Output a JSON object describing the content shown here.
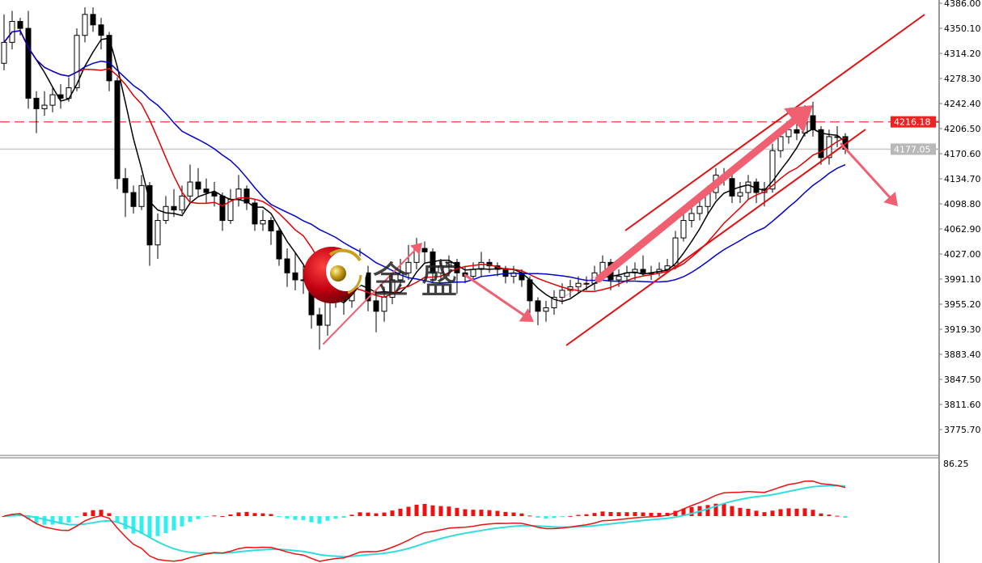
{
  "chart_data": {
    "type": "candlestick",
    "price_axis": {
      "ticks": [
        "4386.00",
        "4350.10",
        "4314.20",
        "4278.30",
        "4242.40",
        "4206.50",
        "4170.60",
        "4134.70",
        "4098.80",
        "4062.90",
        "4027.00",
        "3991.10",
        "3955.20",
        "3919.30",
        "3883.40",
        "3847.50",
        "3811.60",
        "3775.70"
      ],
      "range": [
        3740,
        4390
      ]
    },
    "levels": [
      {
        "label": "4216.18",
        "value": 4216.18,
        "style": "dashed",
        "color": "#f05050"
      },
      {
        "label": "4177.05",
        "value": 4177.05,
        "style": "solid",
        "color": "#c8c8c8"
      }
    ],
    "moving_averages": [
      {
        "period": 5,
        "color": "#000000"
      },
      {
        "period": 10,
        "color": "#e00000"
      },
      {
        "period": 20,
        "color": "#0000cc"
      }
    ],
    "candles": {
      "open": [
        4300,
        4330,
        4360,
        4350,
        4250,
        4235,
        4240,
        4255,
        4250,
        4265,
        4340,
        4370,
        4355,
        4340,
        4275,
        4135,
        4115,
        4095,
        4125,
        4040,
        4075,
        4095,
        4090,
        4110,
        4130,
        4120,
        4115,
        4110,
        4075,
        4105,
        4120,
        4100,
        4070,
        4075,
        4060,
        4020,
        4000,
        3990,
        3990,
        3940,
        3925,
        3985,
        3975,
        3960,
        3995,
        4000,
        3960,
        3945,
        3965,
        3990,
        4000,
        4015,
        4035,
        4030,
        4000,
        4010,
        4015,
        4000,
        3995,
        4005,
        4015,
        4010,
        4005,
        3995,
        4000,
        3990,
        3960,
        3945,
        3950,
        3965,
        3975,
        3980,
        3985,
        3985,
        4000,
        4015,
        3990,
        3995,
        4000,
        4005,
        4000,
        4000,
        4005,
        4010,
        4050,
        4075,
        4085,
        4095,
        4115,
        4140,
        4135,
        4110,
        4115,
        4130,
        4115,
        4120,
        4175,
        4195,
        4205,
        4200,
        4225,
        4205,
        4165,
        4195,
        4195
      ],
      "high": [
        4370,
        4375,
        4365,
        4375,
        4260,
        4260,
        4265,
        4270,
        4280,
        4350,
        4380,
        4380,
        4365,
        4345,
        4280,
        4150,
        4125,
        4140,
        4130,
        4085,
        4110,
        4120,
        4125,
        4155,
        4150,
        4135,
        4130,
        4115,
        4120,
        4140,
        4125,
        4105,
        4090,
        4080,
        4065,
        4035,
        4030,
        4010,
        3995,
        3950,
        3995,
        3995,
        3990,
        4030,
        4035,
        4010,
        3975,
        3980,
        4000,
        4020,
        4040,
        4050,
        4045,
        4035,
        4020,
        4025,
        4020,
        4010,
        4015,
        4030,
        4020,
        4015,
        4010,
        4010,
        4005,
        3995,
        3965,
        3960,
        3975,
        3985,
        3990,
        3995,
        3995,
        4010,
        4025,
        4020,
        4005,
        4010,
        4015,
        4025,
        4010,
        4015,
        4020,
        4060,
        4085,
        4095,
        4105,
        4125,
        4150,
        4150,
        4140,
        4130,
        4140,
        4135,
        4130,
        4185,
        4205,
        4215,
        4215,
        4240,
        4245,
        4210,
        4205,
        4210,
        4200
      ],
      "low": [
        4290,
        4320,
        4340,
        4235,
        4200,
        4225,
        4230,
        4235,
        4245,
        4260,
        4330,
        4345,
        4320,
        4260,
        4120,
        4080,
        4085,
        4090,
        4010,
        4020,
        4070,
        4080,
        4085,
        4100,
        4110,
        4100,
        4095,
        4060,
        4070,
        4095,
        4090,
        4060,
        4060,
        4040,
        4010,
        3980,
        3975,
        3970,
        3920,
        3890,
        3910,
        3950,
        3940,
        3950,
        3980,
        3945,
        3915,
        3930,
        3955,
        3980,
        3990,
        4005,
        4015,
        3985,
        3990,
        3995,
        3970,
        3985,
        3990,
        3995,
        4000,
        3995,
        3985,
        3985,
        3980,
        3935,
        3925,
        3930,
        3940,
        3955,
        3965,
        3970,
        3975,
        3975,
        3990,
        3975,
        3980,
        3985,
        3990,
        3995,
        3990,
        3995,
        4000,
        4005,
        4045,
        4065,
        4075,
        4085,
        4105,
        4125,
        4100,
        4100,
        4105,
        4100,
        4095,
        4115,
        4165,
        4185,
        4190,
        4195,
        4195,
        4155,
        4155,
        4180,
        4170
      ],
      "close": [
        4330,
        4360,
        4350,
        4250,
        4235,
        4240,
        4255,
        4250,
        4265,
        4340,
        4370,
        4355,
        4340,
        4275,
        4135,
        4115,
        4095,
        4125,
        4040,
        4075,
        4095,
        4090,
        4110,
        4130,
        4120,
        4115,
        4110,
        4075,
        4105,
        4120,
        4100,
        4070,
        4075,
        4060,
        4020,
        4000,
        3990,
        3990,
        3940,
        3925,
        3985,
        3975,
        3960,
        3995,
        4000,
        3960,
        3945,
        3965,
        3990,
        4000,
        4015,
        4035,
        4030,
        4000,
        4010,
        4015,
        4000,
        3995,
        4005,
        4015,
        4010,
        4005,
        3995,
        4000,
        3990,
        3960,
        3945,
        3950,
        3965,
        3975,
        3980,
        3985,
        3985,
        4000,
        4015,
        3990,
        3995,
        4000,
        4005,
        4000,
        4000,
        4005,
        4010,
        4050,
        4075,
        4085,
        4095,
        4115,
        4140,
        4135,
        4110,
        4115,
        4130,
        4115,
        4120,
        4175,
        4195,
        4205,
        4200,
        4225,
        4205,
        4165,
        4195,
        4195,
        4177
      ]
    },
    "macd_pane": {
      "top_label": "86.25",
      "positive_color": "#ee1111",
      "negative_color": "#33eeee",
      "macd_line_color": "#ee1111",
      "signal_line_color": "#33dddd"
    },
    "annotation_color": "#f06070"
  },
  "watermark": {
    "text": "金盛"
  }
}
